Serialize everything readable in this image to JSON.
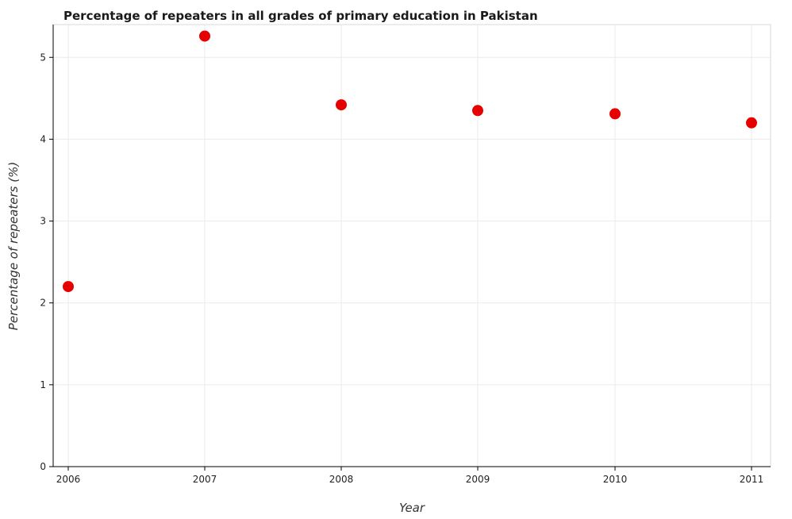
{
  "chart_data": {
    "type": "scatter",
    "title": "Percentage of repeaters in all grades of primary education in Pakistan",
    "xlabel": "Year",
    "ylabel": "Percentage of repeaters (%)",
    "categories": [
      "2006",
      "2007",
      "2008",
      "2009",
      "2010",
      "2011"
    ],
    "values": [
      2.2,
      5.26,
      4.42,
      4.35,
      4.31,
      4.2
    ],
    "ylim": [
      0,
      5.4
    ],
    "yticks": [
      "0",
      "1",
      "2",
      "3",
      "4",
      "5"
    ],
    "grid": true,
    "marker_color": "#e60000"
  }
}
